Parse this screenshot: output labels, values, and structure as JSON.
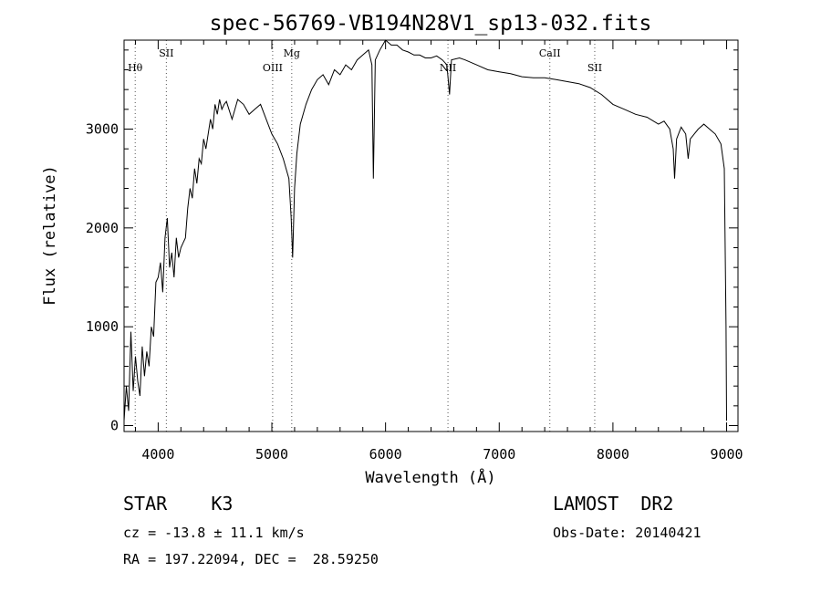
{
  "chart_data": {
    "type": "line",
    "title": "spec-56769-VB194N28V1_sp13-032.fits",
    "xlabel": "Wavelength (Å)",
    "ylabel": "Flux (relative)",
    "xlim": [
      3700,
      9100
    ],
    "ylim": [
      -60,
      3900
    ],
    "xticks": [
      4000,
      5000,
      6000,
      7000,
      8000,
      9000
    ],
    "yticks": [
      0,
      1000,
      2000,
      3000
    ],
    "line_color": "#000000",
    "grid": false,
    "series": [
      {
        "x": [
          3700,
          3720,
          3740,
          3760,
          3780,
          3800,
          3820,
          3840,
          3860,
          3880,
          3900,
          3920,
          3940,
          3960,
          3980,
          4000,
          4020,
          4040,
          4060,
          4080,
          4100,
          4120,
          4140,
          4160,
          4180,
          4200,
          4220,
          4240,
          4260,
          4280,
          4300,
          4320,
          4340,
          4360,
          4380,
          4400,
          4420,
          4440,
          4460,
          4480,
          4500,
          4520,
          4540,
          4560,
          4580,
          4600,
          4650,
          4700,
          4750,
          4800,
          4850,
          4900,
          4950,
          5000,
          5050,
          5100,
          5150,
          5170,
          5183,
          5200,
          5220,
          5250,
          5300,
          5350,
          5400,
          5450,
          5500,
          5550,
          5600,
          5650,
          5700,
          5750,
          5800,
          5850,
          5880,
          5893,
          5910,
          5950,
          6000,
          6050,
          6100,
          6150,
          6200,
          6250,
          6300,
          6350,
          6400,
          6450,
          6500,
          6540,
          6563,
          6580,
          6650,
          6700,
          6800,
          6900,
          7000,
          7100,
          7200,
          7300,
          7400,
          7500,
          7600,
          7700,
          7800,
          7900,
          8000,
          8100,
          8200,
          8300,
          8400,
          8450,
          8500,
          8530,
          8542,
          8560,
          8600,
          8640,
          8662,
          8680,
          8750,
          8800,
          8850,
          8900,
          8950,
          8980,
          8995,
          9000
        ],
        "values": [
          50,
          400,
          150,
          950,
          350,
          700,
          450,
          300,
          800,
          500,
          750,
          600,
          1000,
          900,
          1450,
          1500,
          1650,
          1350,
          1900,
          2100,
          1600,
          1750,
          1500,
          1900,
          1700,
          1800,
          1850,
          1900,
          2200,
          2400,
          2300,
          2600,
          2450,
          2700,
          2650,
          2900,
          2800,
          2950,
          3100,
          3000,
          3250,
          3150,
          3300,
          3200,
          3250,
          3280,
          3100,
          3300,
          3250,
          3150,
          3200,
          3250,
          3100,
          2950,
          2850,
          2700,
          2500,
          2100,
          1700,
          2400,
          2750,
          3050,
          3250,
          3400,
          3500,
          3550,
          3450,
          3600,
          3550,
          3650,
          3600,
          3700,
          3750,
          3800,
          3650,
          2500,
          3700,
          3800,
          3900,
          3850,
          3850,
          3800,
          3780,
          3750,
          3750,
          3720,
          3720,
          3740,
          3700,
          3650,
          3350,
          3700,
          3720,
          3700,
          3650,
          3600,
          3580,
          3560,
          3530,
          3520,
          3520,
          3500,
          3480,
          3460,
          3420,
          3350,
          3250,
          3200,
          3150,
          3120,
          3050,
          3080,
          3000,
          2800,
          2500,
          2900,
          3020,
          2950,
          2700,
          2900,
          3000,
          3050,
          3000,
          2950,
          2850,
          2600,
          1000,
          50
        ]
      }
    ],
    "annotations": [
      {
        "label": "Hθ",
        "x": 3798
      },
      {
        "label": "SII",
        "x": 4072
      },
      {
        "label": "OIII",
        "x": 5007
      },
      {
        "label": "Mg",
        "x": 5175
      },
      {
        "label": "NII",
        "x": 6549
      },
      {
        "label": "CaII",
        "x": 7445
      },
      {
        "label": "SII",
        "x": 7840
      }
    ]
  },
  "footer": {
    "object_type": "STAR    K3",
    "survey": "LAMOST  DR2",
    "cz": "cz = -13.8 ± 11.1 km/s",
    "obs_date": "Obs-Date: 20140421",
    "radec": "RA = 197.22094, DEC =  28.59250"
  }
}
